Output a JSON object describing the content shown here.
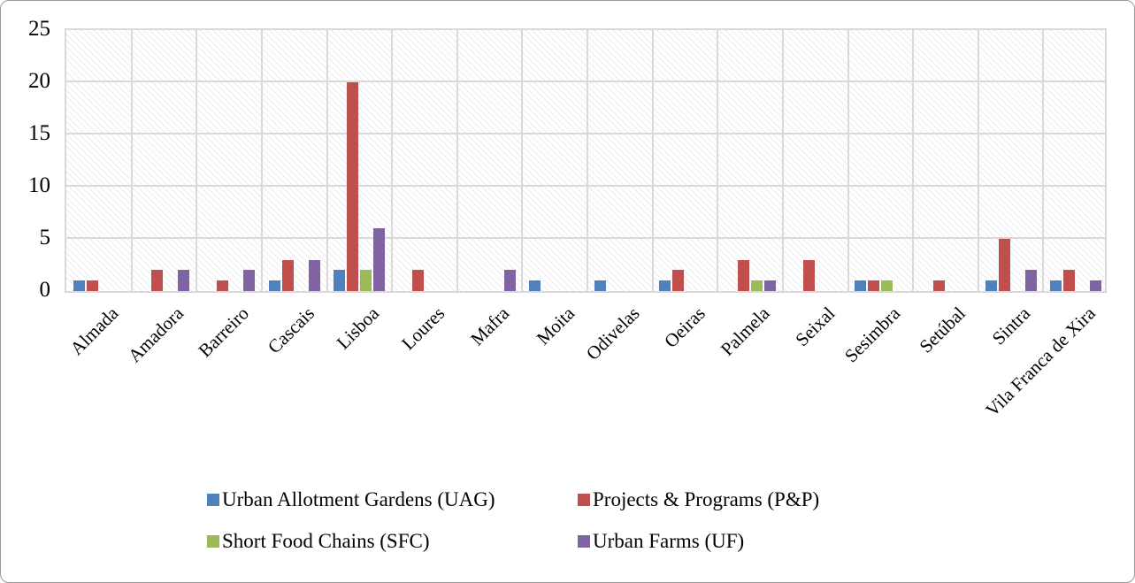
{
  "chart_data": {
    "type": "bar",
    "title": "",
    "xlabel": "",
    "ylabel": "",
    "categories": [
      "Almada",
      "Amadora",
      "Barreiro",
      "Cascais",
      "Lisboa",
      "Loures",
      "Mafra",
      "Moita",
      "Odivelas",
      "Oeiras",
      "Palmela",
      "Seixal",
      "Sesimbra",
      "Setúbal",
      "Sintra",
      "Vila Franca de Xira"
    ],
    "series": [
      {
        "name": "Urban Allotment Gardens (UAG)",
        "color": "#4f81bd",
        "values": [
          1,
          0,
          0,
          1,
          2,
          0,
          0,
          1,
          1,
          1,
          0,
          0,
          1,
          0,
          1,
          1
        ]
      },
      {
        "name": "Projects & Programs (P&P)",
        "color": "#c0504d",
        "values": [
          1,
          2,
          1,
          3,
          20,
          2,
          0,
          0,
          0,
          2,
          3,
          3,
          1,
          1,
          5,
          2
        ]
      },
      {
        "name": "Short Food Chains (SFC)",
        "color": "#9bbb59",
        "values": [
          0,
          0,
          0,
          0,
          2,
          0,
          0,
          0,
          0,
          0,
          1,
          0,
          1,
          0,
          0,
          0
        ]
      },
      {
        "name": "Urban Farms (UF)",
        "color": "#8064a2",
        "values": [
          0,
          2,
          2,
          3,
          6,
          0,
          2,
          0,
          0,
          0,
          1,
          0,
          0,
          0,
          2,
          1
        ]
      }
    ],
    "y_ticks": [
      "0",
      "5",
      "10",
      "15",
      "20",
      "25"
    ],
    "ylim": [
      0,
      25
    ],
    "grid": true,
    "grid_color": "#d9d9d9",
    "plot_hatch": true,
    "legend_position": "bottom"
  }
}
